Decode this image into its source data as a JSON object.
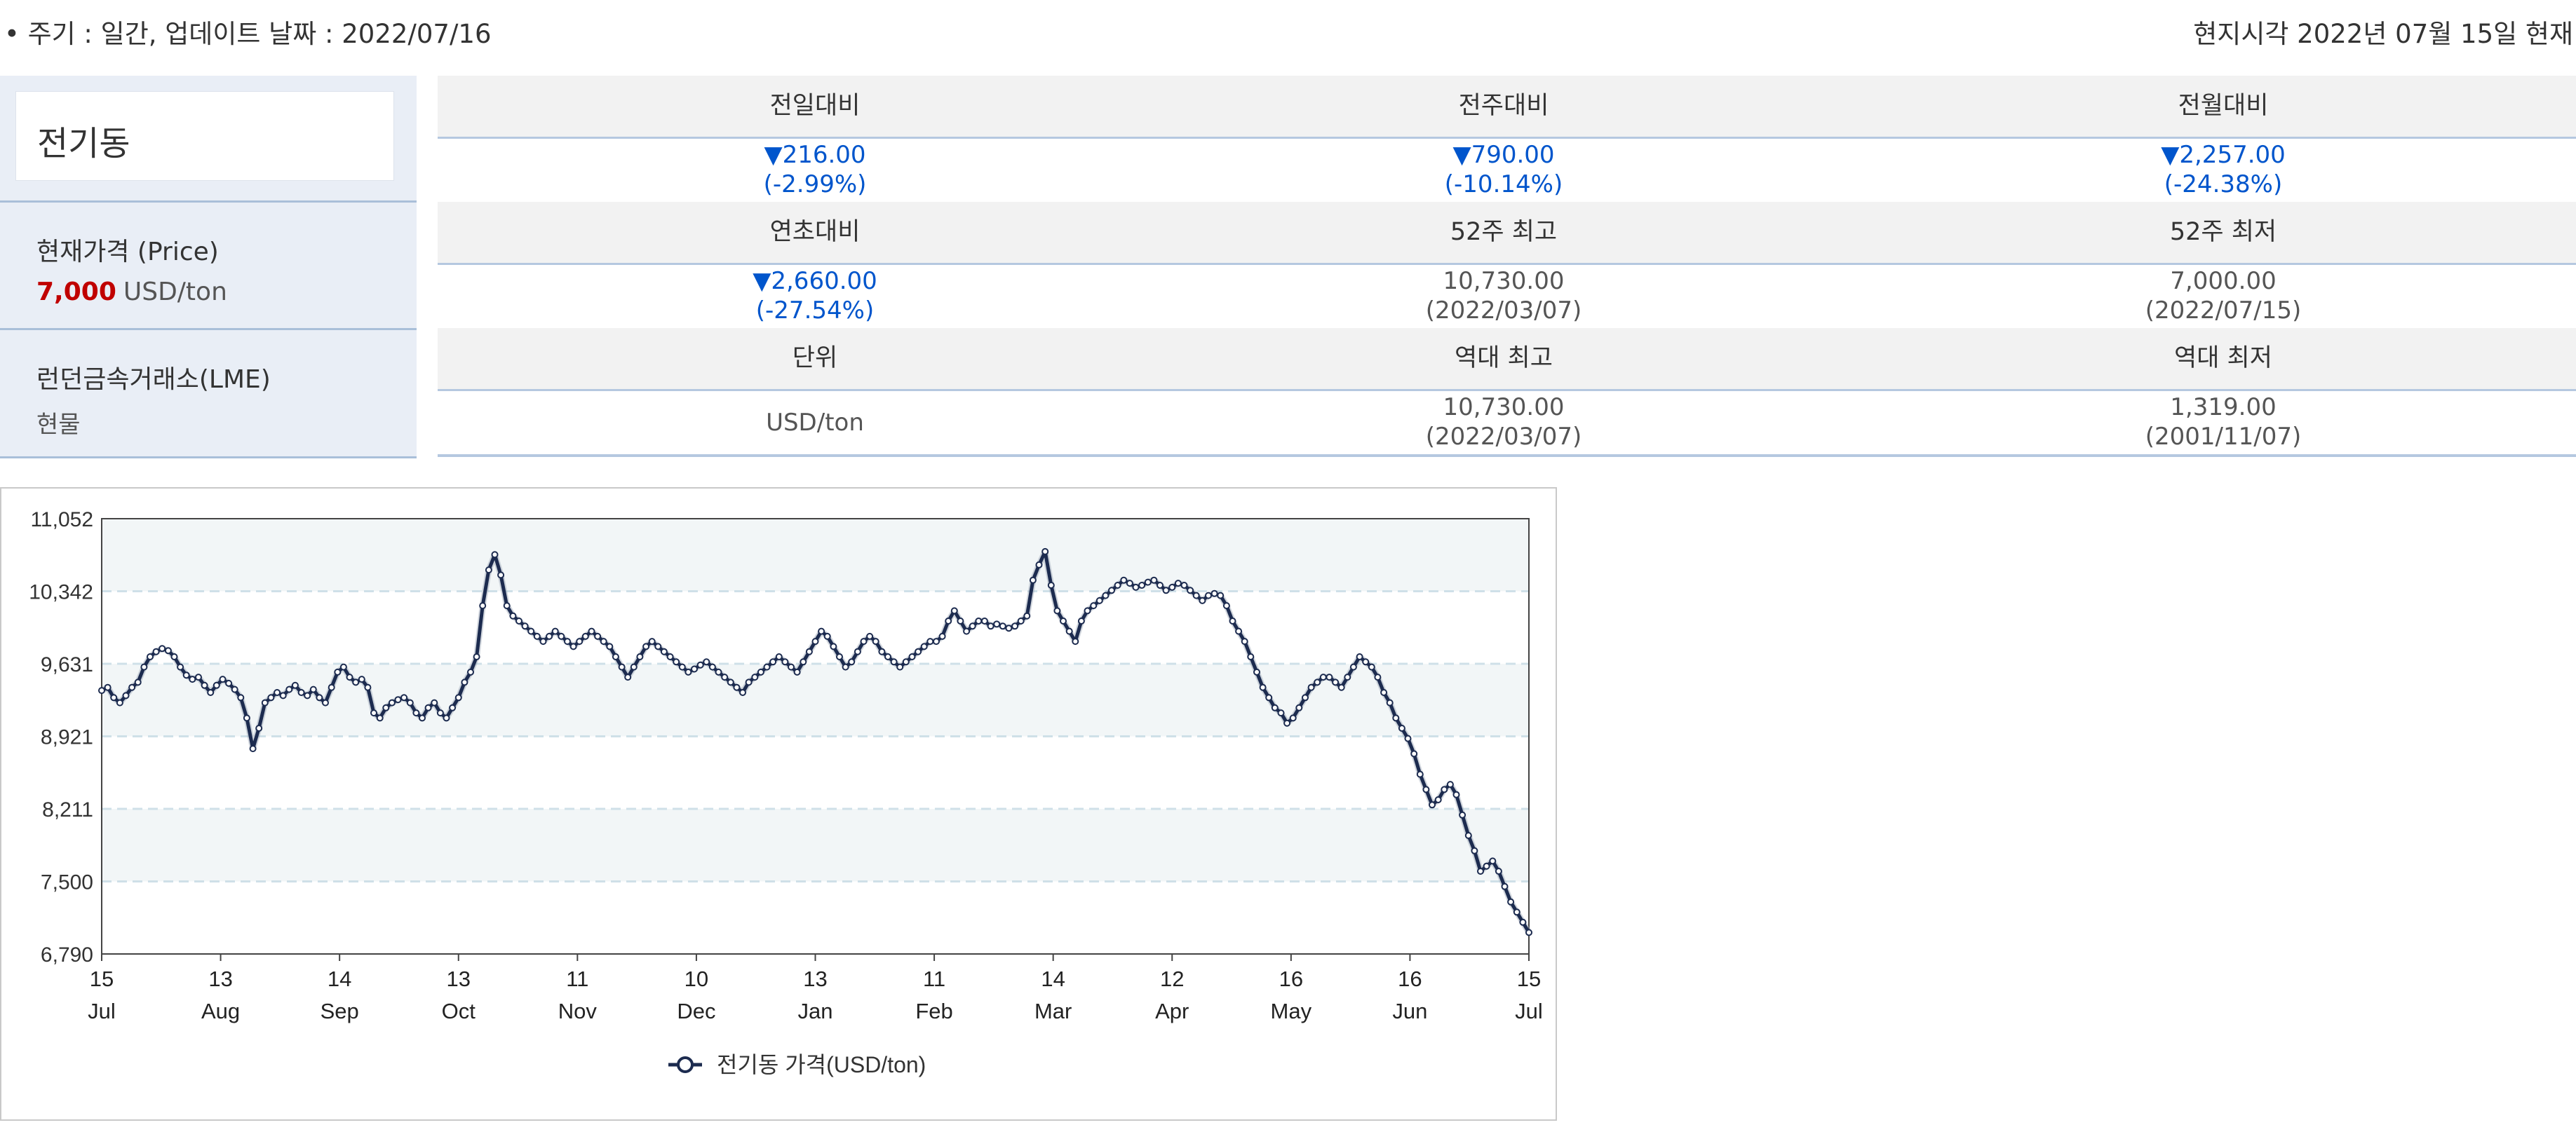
{
  "header": {
    "cycle_info": "• 주기 : 일간, 업데이트 날짜 : 2022/07/16",
    "local_time": "현지시각 2022년 07월 15일 현재"
  },
  "commodity": {
    "name": "전기동",
    "price_label": "현재가격 (Price)",
    "price_value": "7,000",
    "price_unit": "USD/ton",
    "exchange": "런던금속거래소(LME)",
    "market": "현물"
  },
  "stats": [
    [
      {
        "label": "전일대비",
        "value": "▼216.00",
        "sub": "(-2.99%)",
        "down": true
      },
      {
        "label": "전주대비",
        "value": "▼790.00",
        "sub": "(-10.14%)",
        "down": true
      },
      {
        "label": "전월대비",
        "value": "▼2,257.00",
        "sub": "(-24.38%)",
        "down": true
      }
    ],
    [
      {
        "label": "연초대비",
        "value": "▼2,660.00",
        "sub": "(-27.54%)",
        "down": true
      },
      {
        "label": "52주 최고",
        "value": "10,730.00",
        "sub": "(2022/03/07)",
        "down": false
      },
      {
        "label": "52주 최저",
        "value": "7,000.00",
        "sub": "(2022/07/15)",
        "down": false
      }
    ],
    [
      {
        "label": "단위",
        "value": "USD/ton",
        "sub": "",
        "down": false
      },
      {
        "label": "역대 최고",
        "value": "10,730.00",
        "sub": "(2022/03/07)",
        "down": false
      },
      {
        "label": "역대 최저",
        "value": "1,319.00",
        "sub": "(2001/11/07)",
        "down": false
      }
    ]
  ],
  "colors": {
    "down": "#0055cc",
    "price": "#c00000",
    "line": "#1c2b4f",
    "band": "#f2f6f7"
  },
  "chart_data": {
    "type": "line",
    "y_ticks": [
      "11,052",
      "10,342",
      "9,631",
      "8,921",
      "8,211",
      "7,500",
      "6,790"
    ],
    "ylim": [
      6790,
      11052
    ],
    "x_ticks": [
      {
        "day": "15",
        "month": "Jul"
      },
      {
        "day": "13",
        "month": "Aug"
      },
      {
        "day": "14",
        "month": "Sep"
      },
      {
        "day": "13",
        "month": "Oct"
      },
      {
        "day": "11",
        "month": "Nov"
      },
      {
        "day": "10",
        "month": "Dec"
      },
      {
        "day": "13",
        "month": "Jan"
      },
      {
        "day": "11",
        "month": "Feb"
      },
      {
        "day": "14",
        "month": "Mar"
      },
      {
        "day": "12",
        "month": "Apr"
      },
      {
        "day": "16",
        "month": "May"
      },
      {
        "day": "16",
        "month": "Jun"
      },
      {
        "day": "15",
        "month": "Jul"
      }
    ],
    "grid": true,
    "legend_position": "bottom-center",
    "series": [
      {
        "name": "전기동 가격(USD/ton)",
        "values": [
          9370,
          9400,
          9300,
          9250,
          9320,
          9400,
          9450,
          9600,
          9700,
          9750,
          9780,
          9760,
          9700,
          9600,
          9520,
          9480,
          9500,
          9420,
          9350,
          9420,
          9480,
          9440,
          9380,
          9300,
          9100,
          8800,
          9000,
          9250,
          9300,
          9350,
          9320,
          9380,
          9420,
          9350,
          9320,
          9380,
          9300,
          9250,
          9400,
          9550,
          9600,
          9500,
          9450,
          9480,
          9400,
          9150,
          9100,
          9200,
          9250,
          9280,
          9300,
          9250,
          9150,
          9100,
          9200,
          9250,
          9150,
          9100,
          9200,
          9300,
          9450,
          9550,
          9700,
          10200,
          10550,
          10700,
          10500,
          10200,
          10100,
          10050,
          10000,
          9950,
          9900,
          9850,
          9900,
          9950,
          9900,
          9850,
          9800,
          9850,
          9900,
          9950,
          9900,
          9850,
          9800,
          9700,
          9600,
          9500,
          9600,
          9700,
          9800,
          9850,
          9800,
          9750,
          9700,
          9650,
          9600,
          9550,
          9580,
          9620,
          9650,
          9600,
          9550,
          9500,
          9450,
          9400,
          9350,
          9450,
          9500,
          9550,
          9600,
          9650,
          9700,
          9650,
          9600,
          9550,
          9650,
          9750,
          9850,
          9950,
          9900,
          9800,
          9700,
          9600,
          9650,
          9750,
          9850,
          9900,
          9850,
          9750,
          9700,
          9650,
          9600,
          9650,
          9700,
          9750,
          9800,
          9850,
          9850,
          9900,
          10050,
          10150,
          10050,
          9950,
          10000,
          10050,
          10050,
          10000,
          10020,
          10000,
          9980,
          10000,
          10050,
          10100,
          10450,
          10600,
          10730,
          10400,
          10150,
          10050,
          9950,
          9850,
          10050,
          10150,
          10200,
          10250,
          10300,
          10350,
          10400,
          10450,
          10420,
          10380,
          10400,
          10430,
          10450,
          10400,
          10350,
          10380,
          10420,
          10400,
          10350,
          10300,
          10250,
          10300,
          10320,
          10300,
          10200,
          10050,
          9950,
          9850,
          9700,
          9550,
          9400,
          9300,
          9200,
          9150,
          9050,
          9100,
          9200,
          9300,
          9400,
          9450,
          9500,
          9500,
          9450,
          9400,
          9500,
          9600,
          9700,
          9650,
          9600,
          9500,
          9350,
          9250,
          9100,
          9000,
          8900,
          8750,
          8550,
          8400,
          8250,
          8300,
          8400,
          8450,
          8350,
          8150,
          7950,
          7800,
          7600,
          7650,
          7700,
          7600,
          7450,
          7300,
          7200,
          7100,
          7000
        ]
      }
    ]
  }
}
